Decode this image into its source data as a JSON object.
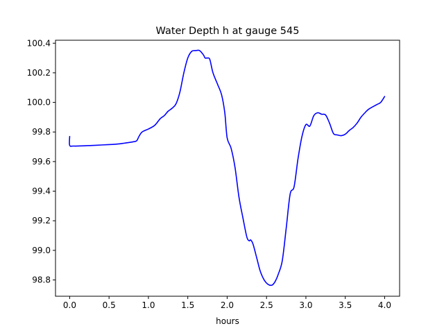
{
  "chart_data": {
    "type": "line",
    "title": "Water Depth h at gauge 545",
    "xlabel": "hours",
    "ylabel": "",
    "xlim": [
      -0.18,
      4.19
    ],
    "ylim": [
      98.69,
      100.42
    ],
    "xticks": [
      0.0,
      0.5,
      1.0,
      1.5,
      2.0,
      2.5,
      3.0,
      3.5,
      4.0
    ],
    "xtick_labels": [
      "0.0",
      "0.5",
      "1.0",
      "1.5",
      "2.0",
      "2.5",
      "3.0",
      "3.5",
      "4.0"
    ],
    "yticks": [
      98.8,
      99.0,
      99.2,
      99.4,
      99.6,
      99.8,
      100.0,
      100.2,
      100.4
    ],
    "ytick_labels": [
      "98.8",
      "99.0",
      "99.2",
      "99.4",
      "99.6",
      "99.8",
      "100.0",
      "100.2",
      "100.4"
    ],
    "grid": false,
    "series": [
      {
        "color": "#0000ff",
        "x": [
          0.0,
          0.0,
          0.05,
          0.2,
          0.4,
          0.6,
          0.7,
          0.8,
          0.85,
          0.88,
          0.92,
          1.0,
          1.08,
          1.15,
          1.2,
          1.25,
          1.3,
          1.35,
          1.4,
          1.45,
          1.5,
          1.55,
          1.6,
          1.65,
          1.7,
          1.72,
          1.75,
          1.78,
          1.82,
          1.88,
          1.93,
          1.97,
          2.0,
          2.05,
          2.1,
          2.15,
          2.2,
          2.25,
          2.28,
          2.3,
          2.33,
          2.38,
          2.42,
          2.47,
          2.52,
          2.57,
          2.61,
          2.65,
          2.7,
          2.75,
          2.8,
          2.85,
          2.9,
          2.95,
          3.0,
          3.05,
          3.1,
          3.15,
          3.2,
          3.25,
          3.3,
          3.35,
          3.4,
          3.45,
          3.5,
          3.55,
          3.6,
          3.65,
          3.7,
          3.75,
          3.8,
          3.9,
          3.95,
          4.0
        ],
        "y": [
          99.77,
          99.71,
          99.705,
          99.707,
          99.712,
          99.718,
          99.725,
          99.733,
          99.74,
          99.77,
          99.8,
          99.82,
          99.845,
          99.89,
          99.91,
          99.94,
          99.96,
          99.99,
          100.07,
          100.2,
          100.3,
          100.345,
          100.35,
          100.35,
          100.32,
          100.3,
          100.3,
          100.29,
          100.2,
          100.12,
          100.05,
          99.93,
          99.76,
          99.69,
          99.56,
          99.36,
          99.22,
          99.09,
          99.065,
          99.07,
          99.04,
          98.94,
          98.86,
          98.8,
          98.77,
          98.765,
          98.79,
          98.84,
          98.93,
          99.15,
          99.38,
          99.43,
          99.62,
          99.77,
          99.85,
          99.84,
          99.91,
          99.93,
          99.92,
          99.915,
          99.86,
          99.79,
          99.78,
          99.775,
          99.785,
          99.81,
          99.83,
          99.86,
          99.9,
          99.93,
          99.955,
          99.985,
          100.0,
          100.04
        ]
      }
    ]
  }
}
